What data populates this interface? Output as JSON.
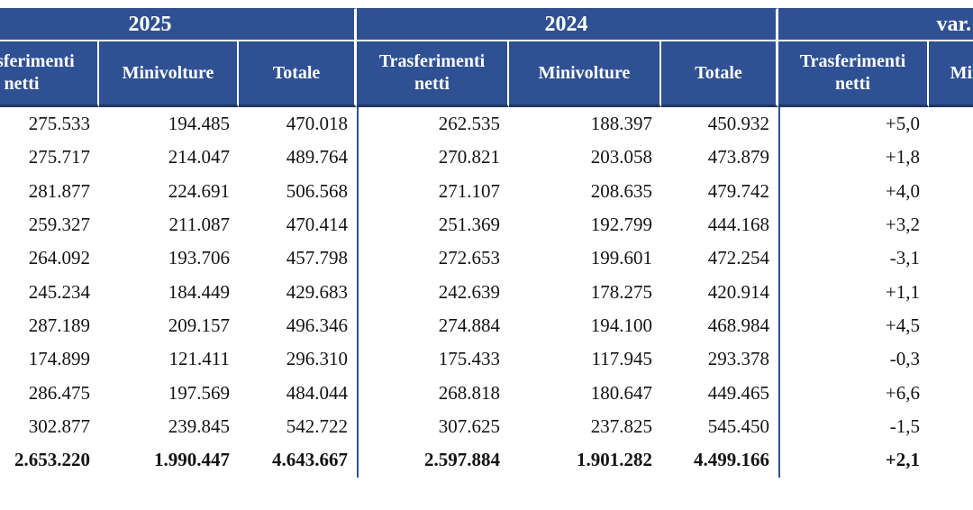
{
  "table": {
    "groups": [
      "2025",
      "2024",
      "var."
    ],
    "columns": [
      "Trasferimenti netti",
      "Minivolture",
      "Totale",
      "Trasferimenti netti",
      "Minivolture",
      "Totale",
      "Trasferimenti netti",
      "Minivolture"
    ],
    "rows": [
      [
        "275.533",
        "194.485",
        "470.018",
        "262.535",
        "188.397",
        "450.932",
        "+5,0",
        ""
      ],
      [
        "275.717",
        "214.047",
        "489.764",
        "270.821",
        "203.058",
        "473.879",
        "+1,8",
        ""
      ],
      [
        "281.877",
        "224.691",
        "506.568",
        "271.107",
        "208.635",
        "479.742",
        "+4,0",
        ""
      ],
      [
        "259.327",
        "211.087",
        "470.414",
        "251.369",
        "192.799",
        "444.168",
        "+3,2",
        ""
      ],
      [
        "264.092",
        "193.706",
        "457.798",
        "272.653",
        "199.601",
        "472.254",
        "-3,1",
        ""
      ],
      [
        "245.234",
        "184.449",
        "429.683",
        "242.639",
        "178.275",
        "420.914",
        "+1,1",
        ""
      ],
      [
        "287.189",
        "209.157",
        "496.346",
        "274.884",
        "194.100",
        "468.984",
        "+4,5",
        ""
      ],
      [
        "174.899",
        "121.411",
        "296.310",
        "175.433",
        "117.945",
        "293.378",
        "-0,3",
        ""
      ],
      [
        "286.475",
        "197.569",
        "484.044",
        "268.818",
        "180.647",
        "449.465",
        "+6,6",
        ""
      ],
      [
        "302.877",
        "239.845",
        "542.722",
        "307.625",
        "237.825",
        "545.450",
        "-1,5",
        ""
      ]
    ],
    "totals": [
      "2.653.220",
      "1.990.447",
      "4.643.667",
      "2.597.884",
      "1.901.282",
      "4.499.166",
      "+2,1",
      ""
    ]
  },
  "colors": {
    "header_bg": "#2F5193",
    "header_border": "#1F3864",
    "text": "#131313",
    "background": "#FFFFFF"
  }
}
